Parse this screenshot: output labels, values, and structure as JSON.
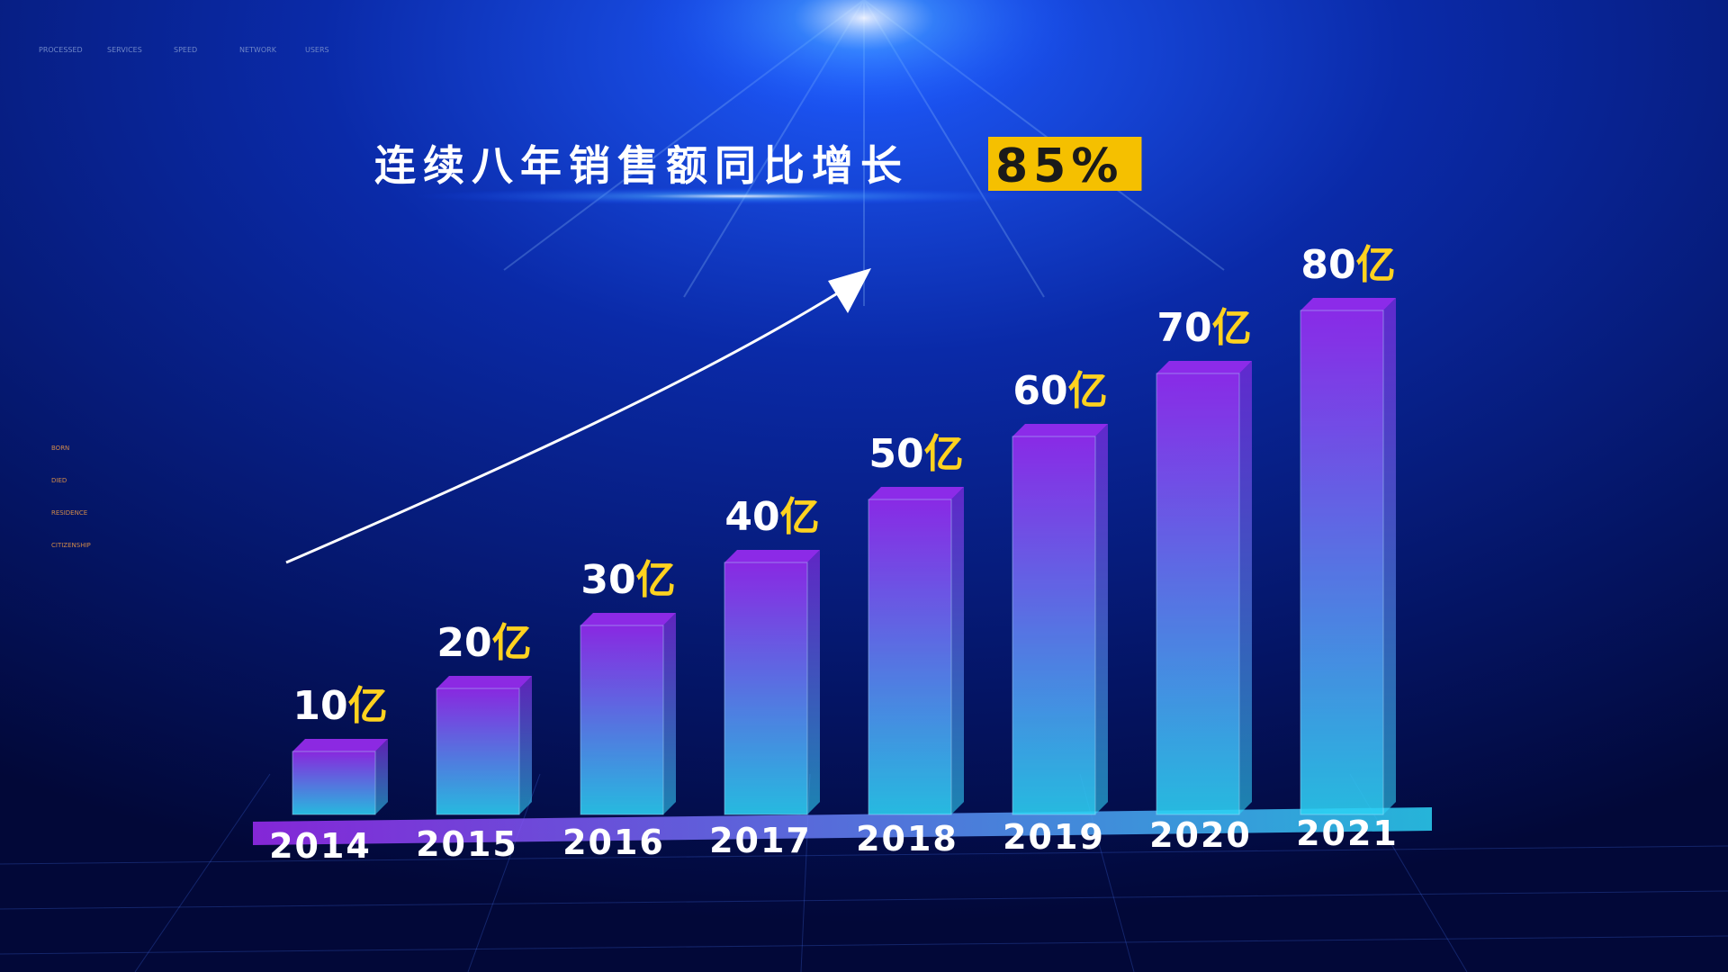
{
  "chart_data": {
    "type": "bar3d",
    "title": "连续八年销售额同比增长",
    "title_highlight": "85%",
    "categories": [
      "2014",
      "2015",
      "2016",
      "2017",
      "2018",
      "2019",
      "2020",
      "2021"
    ],
    "values": [
      10,
      20,
      30,
      40,
      50,
      60,
      70,
      80
    ],
    "value_labels": [
      "10亿",
      "20亿",
      "30亿",
      "40亿",
      "50亿",
      "60亿",
      "70亿",
      "80亿"
    ],
    "gradient": [
      "#9b2cf2",
      "#2cd2f4"
    ],
    "label_color": "#ffd21f",
    "highlight_color": "#f5c000"
  },
  "decor": {
    "top_labels": [
      "PROCESSED",
      "SERVICES",
      "SPEED",
      "NETWORK",
      "USERS"
    ],
    "side_labels": [
      "BORN",
      "DIED",
      "RESIDENCE",
      "CITIZENSHIP"
    ]
  }
}
